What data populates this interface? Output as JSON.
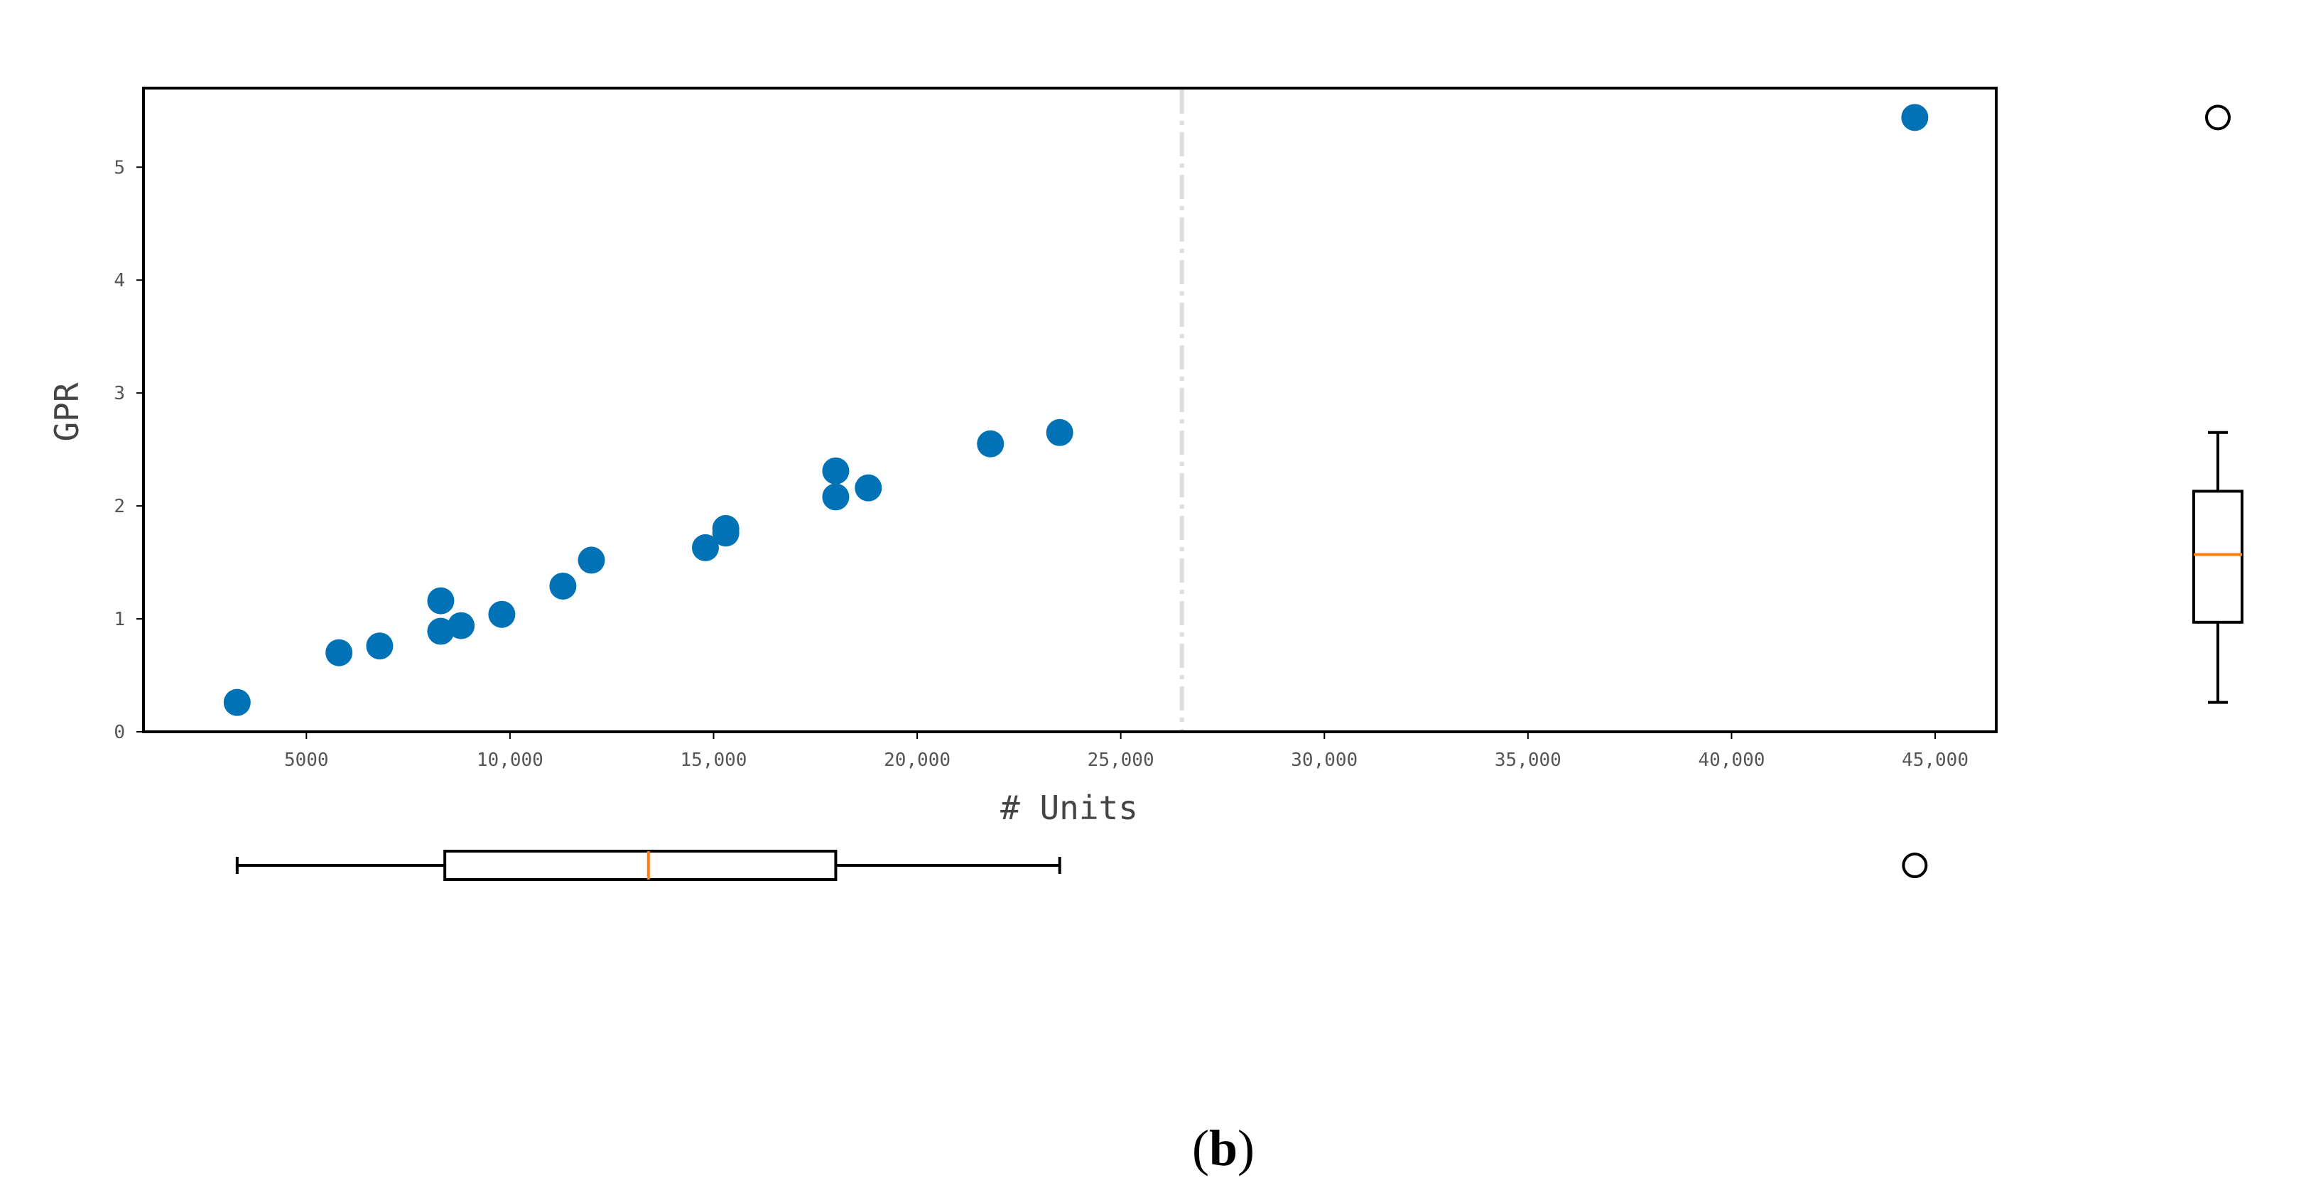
{
  "chart_data": {
    "type": "scatter",
    "xlabel": "# Units",
    "ylabel": "GPR",
    "panel_label": {
      "open": "(",
      "letter": "b",
      "close": ")"
    },
    "xlim": [
      1000,
      46500
    ],
    "ylim": [
      0,
      5.7
    ],
    "x_ticks": [
      5000,
      10000,
      15000,
      20000,
      25000,
      30000,
      35000,
      40000,
      45000
    ],
    "x_tick_labels": [
      "5000",
      "10,000",
      "15,000",
      "20,000",
      "25,000",
      "30,000",
      "35,000",
      "40,000",
      "45,000"
    ],
    "y_ticks": [
      0,
      1,
      2,
      3,
      4,
      5
    ],
    "y_tick_labels": [
      "0",
      "1",
      "2",
      "3",
      "4",
      "5"
    ],
    "reference_line_x": 26500,
    "grid": false,
    "point_color": "#0072b5",
    "median_color": "#ff7f0e",
    "guide_color": "#dddddd",
    "points": [
      {
        "x": 3300,
        "y": 0.26
      },
      {
        "x": 5800,
        "y": 0.7
      },
      {
        "x": 6800,
        "y": 0.76
      },
      {
        "x": 8300,
        "y": 0.89
      },
      {
        "x": 8300,
        "y": 1.16
      },
      {
        "x": 8800,
        "y": 0.94
      },
      {
        "x": 9800,
        "y": 1.04
      },
      {
        "x": 11300,
        "y": 1.29
      },
      {
        "x": 12000,
        "y": 1.52
      },
      {
        "x": 14800,
        "y": 1.63
      },
      {
        "x": 15300,
        "y": 1.76
      },
      {
        "x": 15300,
        "y": 1.8
      },
      {
        "x": 18000,
        "y": 2.08
      },
      {
        "x": 18000,
        "y": 2.31
      },
      {
        "x": 18800,
        "y": 2.16
      },
      {
        "x": 21800,
        "y": 2.55
      },
      {
        "x": 23500,
        "y": 2.65
      },
      {
        "x": 44500,
        "y": 5.44
      }
    ],
    "x_boxplot": {
      "whisker_low": 3300,
      "q1": 8400,
      "median": 13400,
      "q3": 18000,
      "whisker_high": 23500,
      "outliers": [
        44500
      ]
    },
    "y_boxplot": {
      "whisker_low": 0.26,
      "q1": 0.97,
      "median": 1.57,
      "q3": 2.13,
      "whisker_high": 2.65,
      "outliers": [
        5.44
      ]
    }
  }
}
